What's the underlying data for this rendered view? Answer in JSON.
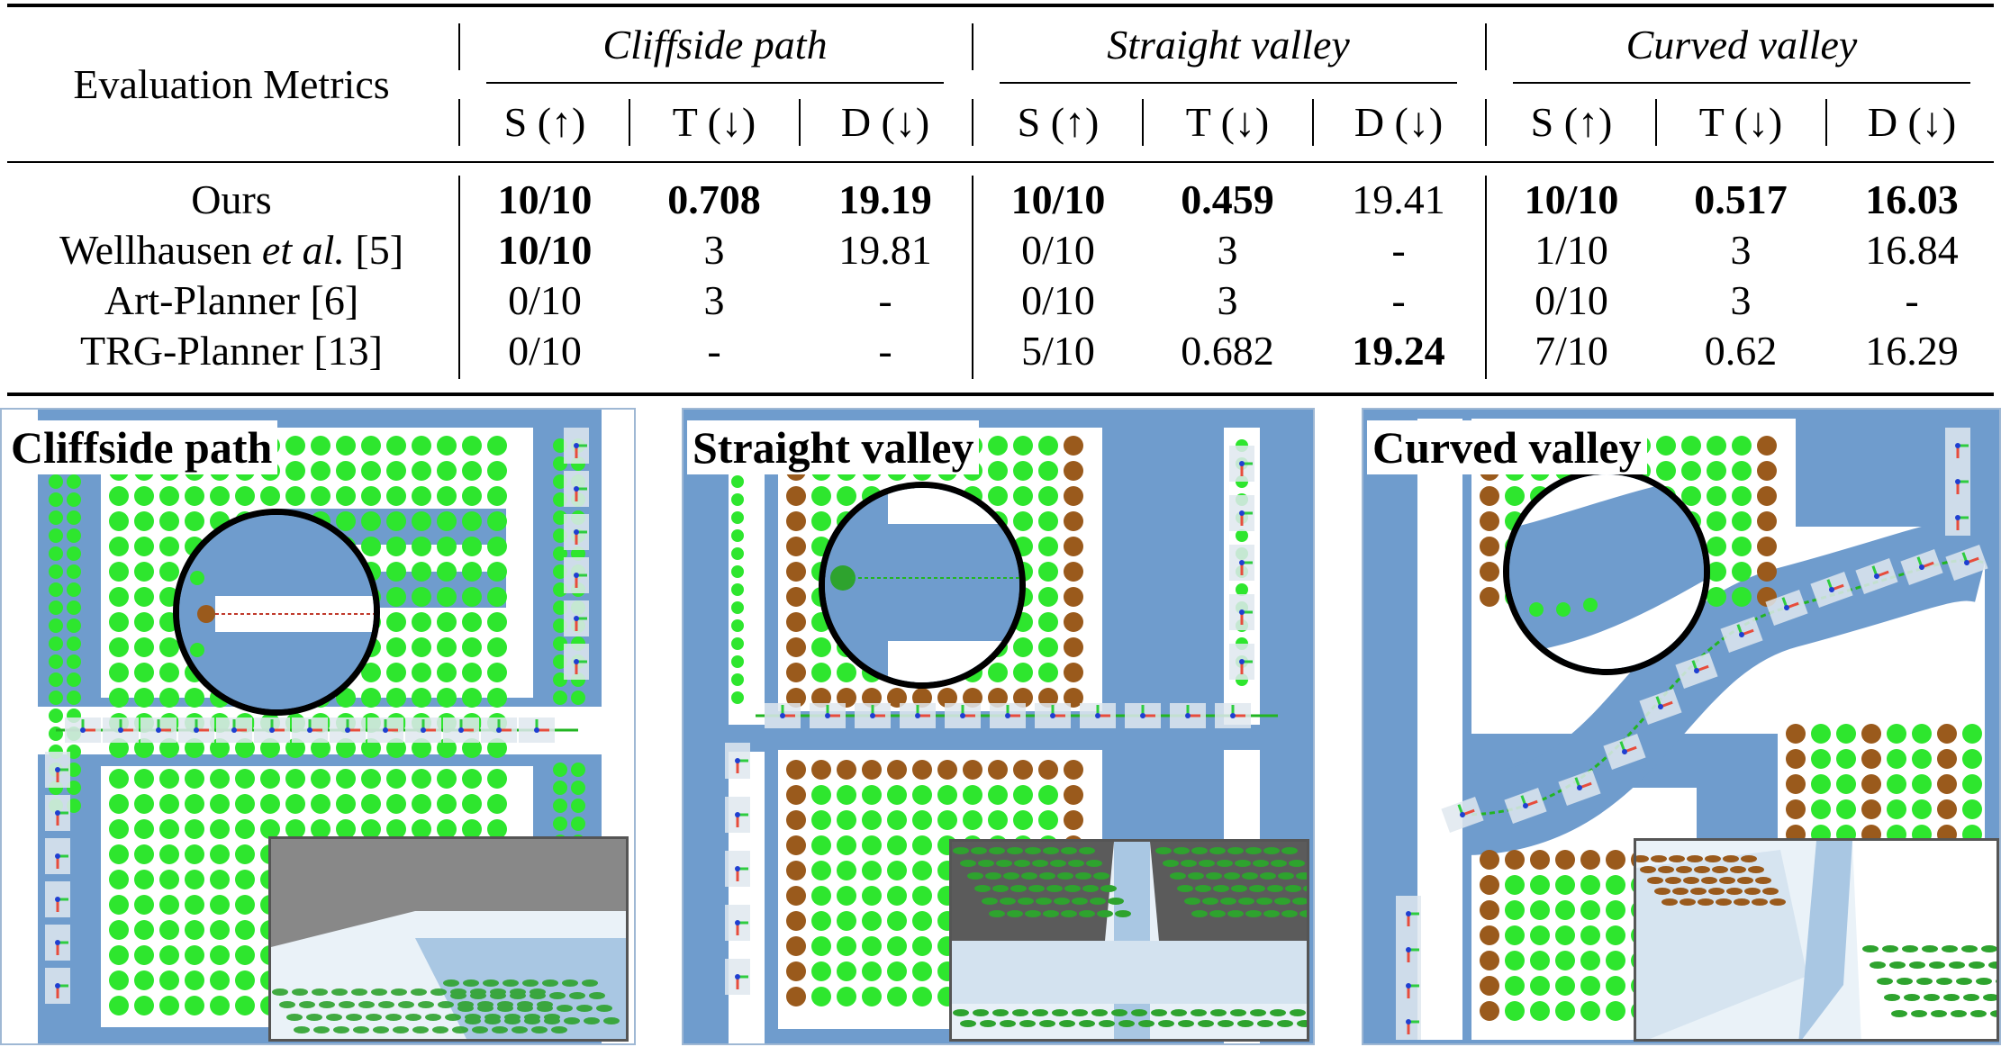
{
  "table": {
    "corner_header": "Evaluation Metrics",
    "groups": [
      "Cliffside path",
      "Straight valley",
      "Curved valley"
    ],
    "subheaders": [
      "S (↑)",
      "T (↓)",
      "D (↓)",
      "S (↑)",
      "T (↓)",
      "D (↓)",
      "S (↑)",
      "T (↓)",
      "D (↓)"
    ],
    "rows": [
      {
        "method": "Ours",
        "method_em": "",
        "method_ref": "",
        "cells": [
          "10/10",
          "0.708",
          "19.19",
          "10/10",
          "0.459",
          "19.41",
          "10/10",
          "0.517",
          "16.03"
        ],
        "bold": [
          true,
          true,
          true,
          true,
          true,
          false,
          true,
          true,
          true
        ]
      },
      {
        "method": "Wellhausen ",
        "method_em": "et al.",
        "method_ref": " [5]",
        "cells": [
          "10/10",
          "3",
          "19.81",
          "0/10",
          "3",
          "-",
          "1/10",
          "3",
          "16.84"
        ],
        "bold": [
          true,
          false,
          false,
          false,
          false,
          false,
          false,
          false,
          false
        ]
      },
      {
        "method": "Art-Planner [6]",
        "method_em": "",
        "method_ref": "",
        "cells": [
          "0/10",
          "3",
          "-",
          "0/10",
          "3",
          "-",
          "0/10",
          "3",
          "-"
        ],
        "bold": [
          false,
          false,
          false,
          false,
          false,
          false,
          false,
          false,
          false
        ]
      },
      {
        "method": "TRG-Planner [13]",
        "method_em": "",
        "method_ref": "",
        "cells": [
          "0/10",
          "-",
          "-",
          "5/10",
          "0.682",
          "19.24",
          "7/10",
          "0.62",
          "16.29"
        ],
        "bold": [
          false,
          false,
          false,
          false,
          false,
          true,
          false,
          false,
          false
        ]
      }
    ]
  },
  "panels": [
    {
      "label": "Cliffside path"
    },
    {
      "label": "Straight valley"
    },
    {
      "label": "Curved valley"
    }
  ],
  "colors": {
    "terrain_blue": "#6f9ccd",
    "foothold_green": "#2ee62e",
    "foothold_brown": "#9a5a1c",
    "path_green": "#22b522"
  }
}
